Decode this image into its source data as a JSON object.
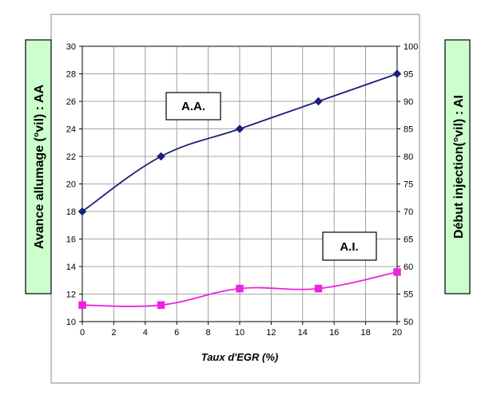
{
  "chart_data": {
    "type": "line",
    "xlabel": "Taux d'EGR (%)",
    "ylabel_left": "Avance allumage (°vil) : AA",
    "ylabel_right": "Début injection(°vil) : AI",
    "x_ticks": [
      0,
      2,
      4,
      6,
      8,
      10,
      12,
      14,
      16,
      18,
      20
    ],
    "y_left_ticks": [
      10,
      12,
      14,
      16,
      18,
      20,
      22,
      24,
      26,
      28,
      30
    ],
    "y_right_ticks": [
      50,
      55,
      60,
      65,
      70,
      75,
      80,
      85,
      90,
      95,
      100
    ],
    "xlim": [
      0,
      20
    ],
    "ylim_left": [
      10,
      30
    ],
    "ylim_right": [
      50,
      100
    ],
    "grid": true,
    "series": [
      {
        "name": "A.A.",
        "axis": "left",
        "color": "#1a1f7a",
        "marker": "diamond",
        "x": [
          0,
          5,
          10,
          15,
          20
        ],
        "y": [
          18,
          22,
          24,
          26,
          28
        ]
      },
      {
        "name": "A.I.",
        "axis": "right",
        "color": "#ee22dd",
        "marker": "square",
        "x": [
          0,
          5,
          10,
          15,
          20
        ],
        "y": [
          53,
          53,
          56,
          56,
          59
        ]
      }
    ]
  },
  "colors": {
    "label_box_fill": "#ccffcc",
    "frame": "#888888",
    "grid": "#888888"
  }
}
